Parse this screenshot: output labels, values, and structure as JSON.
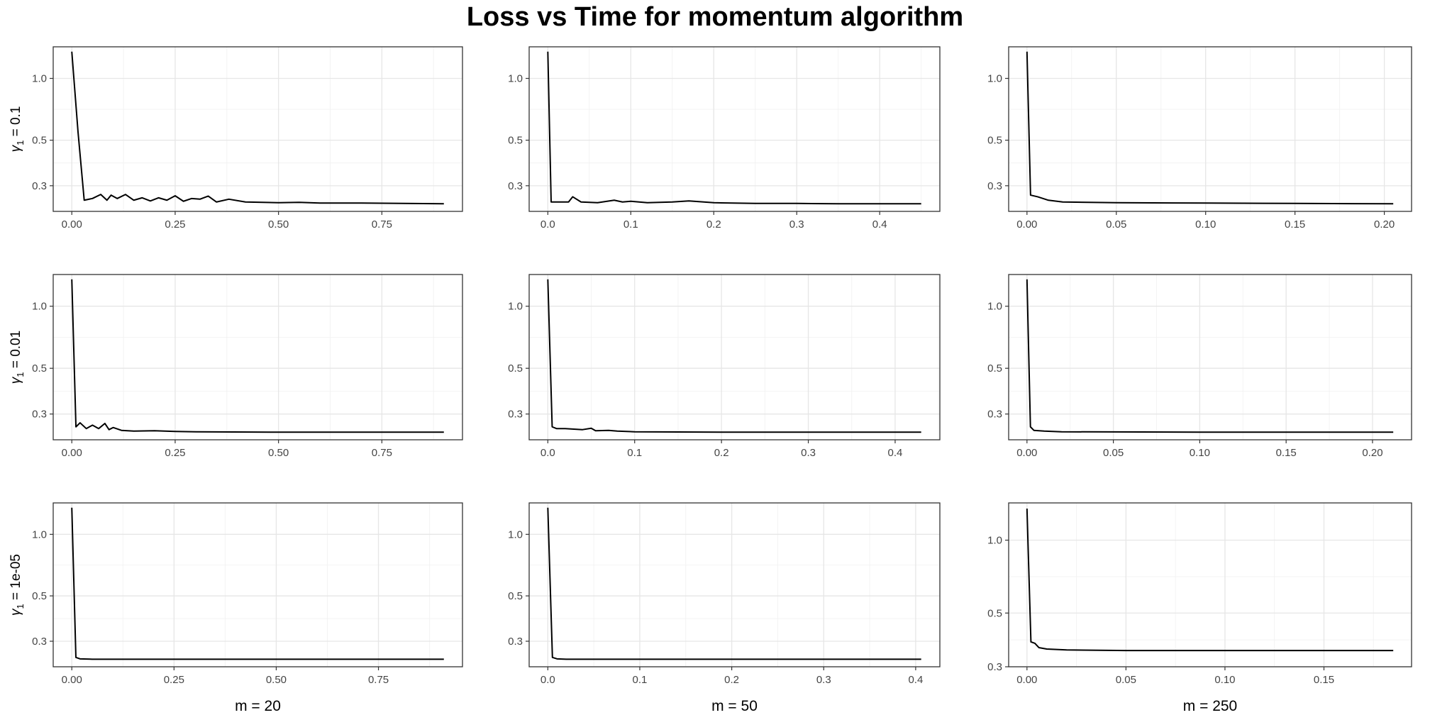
{
  "chart_data": {
    "type": "line",
    "title": "Loss vs Time for momentum algorithm",
    "xlabel": "",
    "ylabel": "",
    "grid": true,
    "row_labels": [
      {
        "symbol": "γ",
        "sub": "1",
        "text": " = 0.1"
      },
      {
        "symbol": "γ",
        "sub": "1",
        "text": " = 0.01"
      },
      {
        "symbol": "γ",
        "sub": "1",
        "text": " = 1e-05"
      }
    ],
    "column_labels": [
      "m = 20",
      "m = 50",
      "m = 250"
    ],
    "panels": [
      {
        "row": 0,
        "col": 0,
        "xlim": [
          -0.045,
          0.945
        ],
        "ylim": [
          0.225,
          1.425
        ],
        "xticks": [
          0,
          0.25,
          0.5,
          0.75
        ],
        "xtick_labels": [
          "0.00",
          "0.25",
          "0.50",
          "0.75"
        ],
        "yticks": [
          0.3,
          0.5,
          1.0
        ],
        "ytick_labels": [
          "0.3",
          "0.5",
          "1.0"
        ],
        "x": [
          0,
          0.015,
          0.03,
          0.05,
          0.07,
          0.085,
          0.095,
          0.11,
          0.13,
          0.15,
          0.17,
          0.19,
          0.21,
          0.23,
          0.25,
          0.27,
          0.29,
          0.31,
          0.33,
          0.35,
          0.38,
          0.42,
          0.5,
          0.55,
          0.6,
          0.7,
          0.8,
          0.9
        ],
        "y": [
          1.35,
          0.55,
          0.255,
          0.26,
          0.272,
          0.255,
          0.27,
          0.26,
          0.272,
          0.255,
          0.262,
          0.253,
          0.262,
          0.255,
          0.268,
          0.252,
          0.26,
          0.258,
          0.267,
          0.25,
          0.258,
          0.25,
          0.248,
          0.249,
          0.247,
          0.247,
          0.246,
          0.245
        ]
      },
      {
        "row": 0,
        "col": 1,
        "xlim": [
          -0.0225,
          0.4725
        ],
        "ylim": [
          0.225,
          1.425
        ],
        "xticks": [
          0,
          0.1,
          0.2,
          0.3,
          0.4
        ],
        "xtick_labels": [
          "0.0",
          "0.1",
          "0.2",
          "0.3",
          "0.4"
        ],
        "yticks": [
          0.3,
          0.5,
          1.0
        ],
        "ytick_labels": [
          "0.3",
          "0.5",
          "1.0"
        ],
        "x": [
          0,
          0.004,
          0.025,
          0.03,
          0.04,
          0.06,
          0.08,
          0.09,
          0.1,
          0.12,
          0.15,
          0.17,
          0.2,
          0.25,
          0.3,
          0.35,
          0.4,
          0.45
        ],
        "y": [
          1.35,
          0.25,
          0.25,
          0.265,
          0.25,
          0.248,
          0.255,
          0.25,
          0.252,
          0.248,
          0.25,
          0.253,
          0.248,
          0.246,
          0.246,
          0.245,
          0.245,
          0.245
        ]
      },
      {
        "row": 0,
        "col": 2,
        "xlim": [
          -0.01025,
          0.21525
        ],
        "ylim": [
          0.225,
          1.425
        ],
        "xticks": [
          0,
          0.05,
          0.1,
          0.15,
          0.2
        ],
        "xtick_labels": [
          "0.00",
          "0.05",
          "0.10",
          "0.15",
          "0.20"
        ],
        "yticks": [
          0.3,
          0.5,
          1.0
        ],
        "ytick_labels": [
          "0.3",
          "0.5",
          "1.0"
        ],
        "x": [
          0,
          0.002,
          0.006,
          0.012,
          0.02,
          0.05,
          0.1,
          0.15,
          0.205
        ],
        "y": [
          1.35,
          0.27,
          0.265,
          0.255,
          0.25,
          0.248,
          0.247,
          0.246,
          0.245
        ]
      },
      {
        "row": 1,
        "col": 0,
        "xlim": [
          -0.045,
          0.945
        ],
        "ylim": [
          0.225,
          1.425
        ],
        "xticks": [
          0,
          0.25,
          0.5,
          0.75
        ],
        "xtick_labels": [
          "0.00",
          "0.25",
          "0.50",
          "0.75"
        ],
        "yticks": [
          0.3,
          0.5,
          1.0
        ],
        "ytick_labels": [
          "0.3",
          "0.5",
          "1.0"
        ],
        "x": [
          0,
          0.01,
          0.02,
          0.035,
          0.05,
          0.065,
          0.08,
          0.09,
          0.1,
          0.12,
          0.15,
          0.2,
          0.25,
          0.3,
          0.5,
          0.7,
          0.9
        ],
        "y": [
          1.35,
          0.26,
          0.272,
          0.255,
          0.265,
          0.255,
          0.27,
          0.252,
          0.258,
          0.25,
          0.248,
          0.249,
          0.247,
          0.246,
          0.245,
          0.245,
          0.245
        ]
      },
      {
        "row": 1,
        "col": 1,
        "xlim": [
          -0.0215,
          0.4515
        ],
        "ylim": [
          0.225,
          1.425
        ],
        "xticks": [
          0,
          0.1,
          0.2,
          0.3,
          0.4
        ],
        "xtick_labels": [
          "0.0",
          "0.1",
          "0.2",
          "0.3",
          "0.4"
        ],
        "yticks": [
          0.3,
          0.5,
          1.0
        ],
        "ytick_labels": [
          "0.3",
          "0.5",
          "1.0"
        ],
        "x": [
          0,
          0.005,
          0.01,
          0.02,
          0.04,
          0.05,
          0.055,
          0.07,
          0.08,
          0.1,
          0.2,
          0.3,
          0.43
        ],
        "y": [
          1.35,
          0.26,
          0.255,
          0.255,
          0.252,
          0.256,
          0.249,
          0.25,
          0.248,
          0.246,
          0.245,
          0.245,
          0.245
        ]
      },
      {
        "row": 1,
        "col": 2,
        "xlim": [
          -0.0106,
          0.2226
        ],
        "ylim": [
          0.225,
          1.425
        ],
        "xticks": [
          0,
          0.05,
          0.1,
          0.15,
          0.2
        ],
        "xtick_labels": [
          "0.00",
          "0.05",
          "0.10",
          "0.15",
          "0.20"
        ],
        "yticks": [
          0.3,
          0.5,
          1.0
        ],
        "ytick_labels": [
          "0.3",
          "0.5",
          "1.0"
        ],
        "x": [
          0,
          0.002,
          0.004,
          0.01,
          0.02,
          0.1,
          0.212
        ],
        "y": [
          1.35,
          0.26,
          0.25,
          0.248,
          0.246,
          0.245,
          0.245
        ]
      },
      {
        "row": 2,
        "col": 0,
        "xlim": [
          -0.0455,
          0.9555
        ],
        "ylim": [
          0.225,
          1.425
        ],
        "xticks": [
          0,
          0.25,
          0.5,
          0.75
        ],
        "xtick_labels": [
          "0.00",
          "0.25",
          "0.50",
          "0.75"
        ],
        "yticks": [
          0.3,
          0.5,
          1.0
        ],
        "ytick_labels": [
          "0.3",
          "0.5",
          "1.0"
        ],
        "x": [
          0,
          0.01,
          0.02,
          0.05,
          0.2,
          0.5,
          0.91
        ],
        "y": [
          1.35,
          0.25,
          0.246,
          0.245,
          0.245,
          0.245,
          0.245
        ]
      },
      {
        "row": 2,
        "col": 1,
        "xlim": [
          -0.0203,
          0.4263
        ],
        "ylim": [
          0.225,
          1.425
        ],
        "xticks": [
          0,
          0.1,
          0.2,
          0.3,
          0.4
        ],
        "xtick_labels": [
          "0.0",
          "0.1",
          "0.2",
          "0.3",
          "0.4"
        ],
        "yticks": [
          0.3,
          0.5,
          1.0
        ],
        "ytick_labels": [
          "0.3",
          "0.5",
          "1.0"
        ],
        "x": [
          0,
          0.005,
          0.01,
          0.02,
          0.1,
          0.25,
          0.406
        ],
        "y": [
          1.35,
          0.25,
          0.246,
          0.245,
          0.245,
          0.245,
          0.245
        ]
      },
      {
        "row": 2,
        "col": 2,
        "xlim": [
          -0.00925,
          0.19425
        ],
        "ylim": [
          0.3,
          1.425
        ],
        "xticks": [
          0,
          0.05,
          0.1,
          0.15
        ],
        "xtick_labels": [
          "0.00",
          "0.05",
          "0.10",
          "0.15"
        ],
        "yticks": [
          0.3,
          0.5,
          1.0
        ],
        "ytick_labels": [
          "0.3",
          "0.5",
          "1.0"
        ],
        "x": [
          0,
          0.002,
          0.004,
          0.006,
          0.01,
          0.02,
          0.05,
          0.1,
          0.185
        ],
        "y": [
          1.35,
          0.38,
          0.375,
          0.36,
          0.355,
          0.352,
          0.35,
          0.35,
          0.35
        ]
      }
    ]
  }
}
